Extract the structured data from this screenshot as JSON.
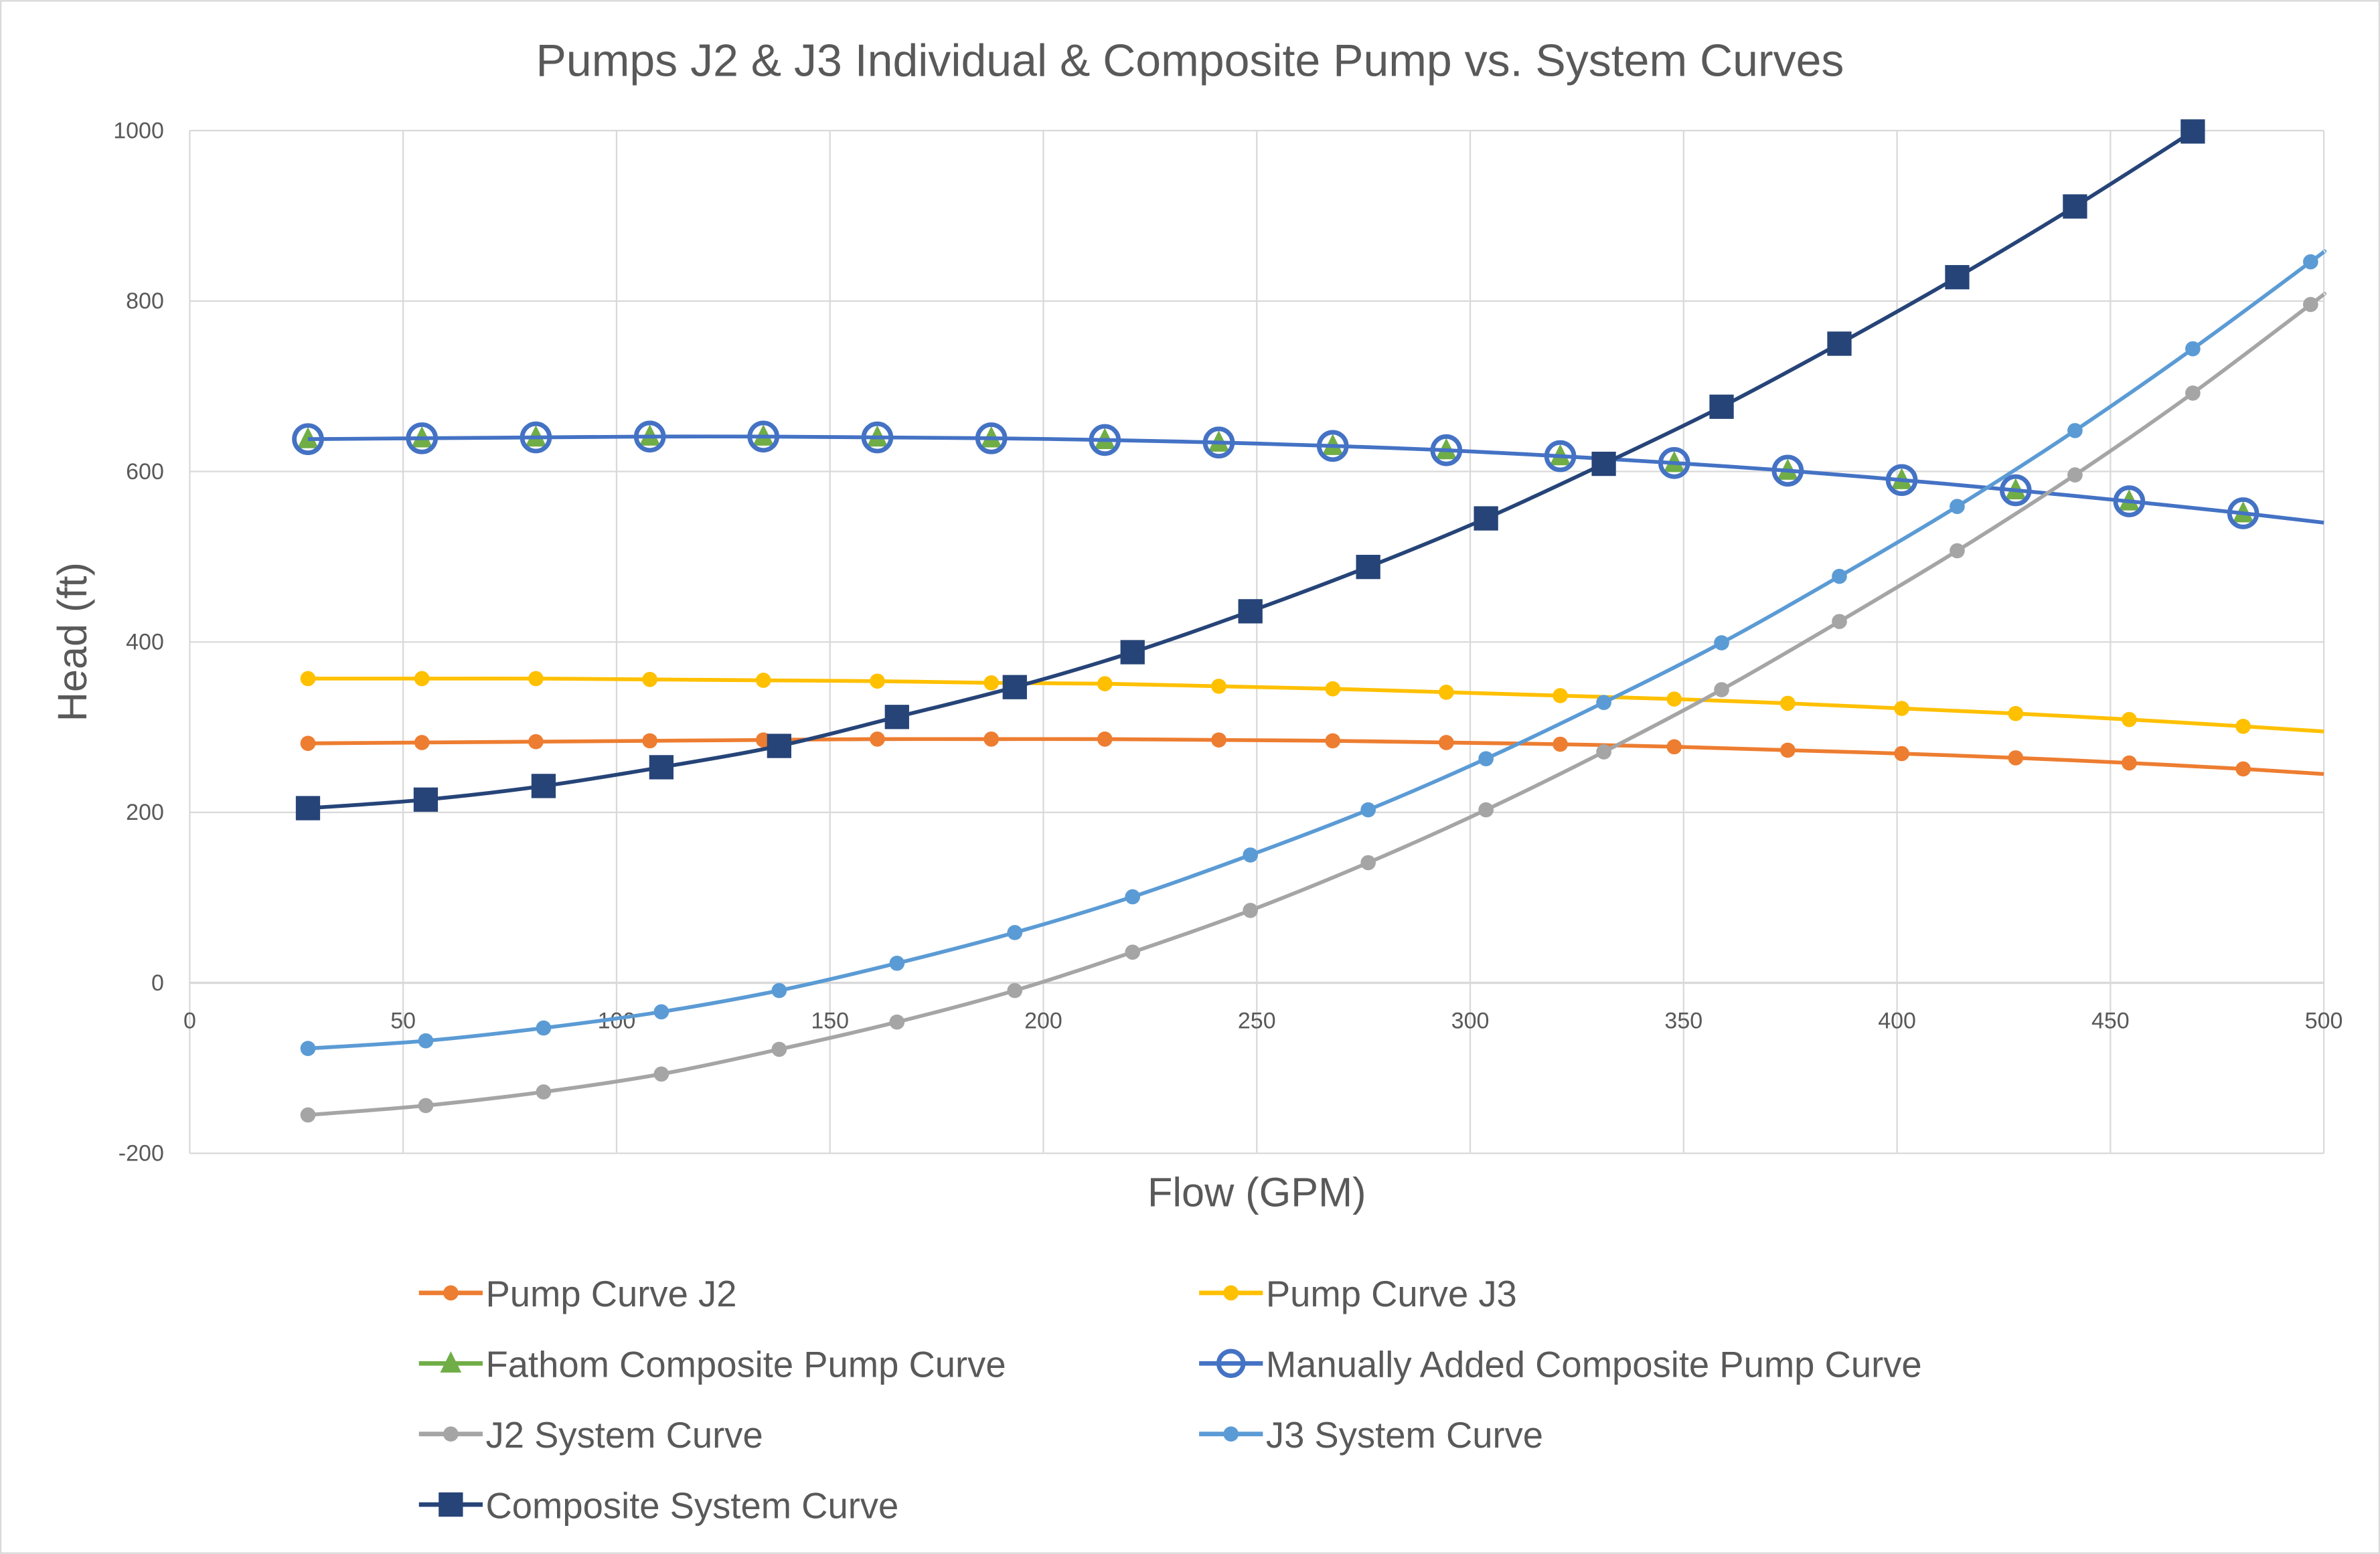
{
  "chart_data": {
    "type": "line",
    "title": "Pumps J2 & J3 Individual & Composite Pump vs. System Curves",
    "xlabel": "Flow (GPM)",
    "ylabel": "Head (ft)",
    "xlim": [
      0,
      500
    ],
    "ylim": [
      -200,
      1000
    ],
    "xticks": [
      "0",
      "50",
      "100",
      "150",
      "200",
      "250",
      "300",
      "350",
      "400",
      "450",
      "500"
    ],
    "yticks": [
      "-200",
      "0",
      "200",
      "400",
      "600",
      "800",
      "1000"
    ],
    "grid": true,
    "legend_position": "bottom",
    "series": [
      {
        "name": "Pump Curve J2",
        "color": "#ED7D31",
        "marker": "circle",
        "x": [
          27.7,
          54.4,
          81.1,
          107.8,
          134.4,
          161.1,
          187.8,
          214.4,
          241.1,
          267.8,
          294.4,
          321.1,
          347.8,
          374.4,
          401.1,
          427.8,
          454.4,
          481.1
        ],
        "y": [
          281,
          282,
          283,
          284,
          285,
          286,
          286,
          286,
          285,
          284,
          282,
          280,
          277,
          273,
          269,
          264,
          258,
          251
        ],
        "line_end": [
          500,
          245
        ]
      },
      {
        "name": "Pump Curve J3",
        "color": "#FFC000",
        "marker": "circle",
        "x": [
          27.7,
          54.4,
          81.1,
          107.8,
          134.4,
          161.1,
          187.8,
          214.4,
          241.1,
          267.8,
          294.4,
          321.1,
          347.8,
          374.4,
          401.1,
          427.8,
          454.4,
          481.1
        ],
        "y": [
          357,
          357,
          357,
          356,
          355,
          354,
          352,
          351,
          348,
          345,
          341,
          337,
          333,
          328,
          322,
          316,
          309,
          301
        ],
        "line_end": [
          500,
          295
        ]
      },
      {
        "name": "Fathom Composite Pump Curve",
        "color": "#70AD47",
        "marker": "triangle",
        "x": [
          27.7,
          54.4,
          81.1,
          107.8,
          134.4,
          161.1,
          187.8,
          214.4,
          241.1,
          267.8,
          294.4,
          321.1,
          347.8,
          374.4,
          401.1,
          427.8,
          454.4,
          481.1
        ],
        "y": [
          638,
          639,
          640,
          641,
          641,
          640,
          639,
          637,
          634,
          630,
          625,
          618,
          610,
          601,
          590,
          578,
          565,
          551
        ]
      },
      {
        "name": "Manually Added Composite Pump Curve",
        "color": "#4472C4",
        "marker": "open-circle",
        "x": [
          27.7,
          54.4,
          81.1,
          107.8,
          134.4,
          161.1,
          187.8,
          214.4,
          241.1,
          267.8,
          294.4,
          321.1,
          347.8,
          374.4,
          401.1,
          427.8,
          454.4,
          481.1
        ],
        "y": [
          638,
          639,
          640,
          641,
          641,
          640,
          639,
          637,
          634,
          630,
          625,
          618,
          610,
          601,
          590,
          578,
          565,
          551
        ],
        "line_end": [
          500,
          540
        ]
      },
      {
        "name": "J2 System Curve",
        "color": "#A5A5A5",
        "marker": "circle",
        "x": [
          27.7,
          55.3,
          82.9,
          110.5,
          138.1,
          165.7,
          193.3,
          220.9,
          248.5,
          276.1,
          303.7,
          331.3,
          358.9,
          386.5,
          414.1,
          441.7,
          469.3,
          496.9
        ],
        "y": [
          -155,
          -144,
          -128,
          -107,
          -78,
          -46,
          -9,
          36,
          85,
          141,
          203,
          271,
          344,
          424,
          507,
          596,
          692,
          796
        ],
        "line_end": [
          500,
          808
        ]
      },
      {
        "name": "J3 System Curve",
        "color": "#5B9BD5",
        "marker": "circle",
        "x": [
          27.7,
          55.3,
          82.9,
          110.5,
          138.1,
          165.7,
          193.3,
          220.9,
          248.5,
          276.1,
          303.7,
          331.3,
          358.9,
          386.5,
          414.1,
          441.7,
          469.3,
          496.9
        ],
        "y": [
          -77,
          -68,
          -53,
          -34,
          -9,
          23,
          59,
          101,
          150,
          203,
          263,
          329,
          399,
          477,
          559,
          648,
          744,
          846
        ],
        "line_end": [
          500,
          858
        ]
      },
      {
        "name": "Composite System Curve",
        "color": "#264478",
        "marker": "square",
        "x": [
          27.7,
          55.3,
          82.9,
          110.5,
          138.1,
          165.7,
          193.3,
          220.9,
          248.5,
          276.1,
          303.7,
          331.3,
          358.9,
          386.5,
          414.1,
          441.7,
          469.3
        ],
        "y": [
          205,
          215,
          231,
          253,
          278,
          312,
          347,
          388,
          436,
          488,
          545,
          609,
          676,
          750,
          828,
          911,
          999
        ]
      }
    ]
  }
}
